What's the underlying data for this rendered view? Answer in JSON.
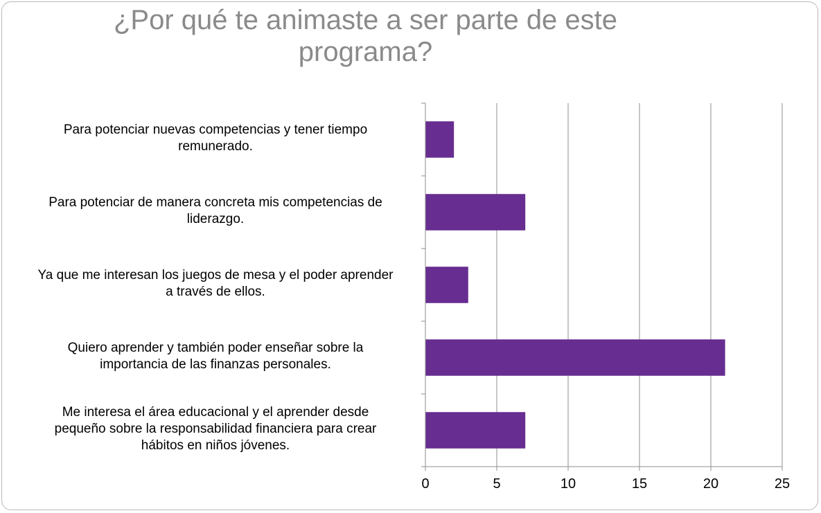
{
  "chart_data": {
    "type": "bar",
    "orientation": "horizontal",
    "title_lines": [
      "¿Por qué te animaste a ser parte de este",
      "programa?"
    ],
    "categories": [
      [
        "Para potenciar nuevas competencias y tener tiempo",
        "remunerado."
      ],
      [
        "Para potenciar de manera concreta mis competencias de",
        "liderazgo."
      ],
      [
        "Ya que me interesan los juegos de mesa y el poder aprender",
        "a través de ellos."
      ],
      [
        "Quiero aprender  y también poder enseñar sobre la",
        "importancia de las finanzas personales."
      ],
      [
        "Me interesa el área educacional y el aprender desde",
        "pequeño sobre la responsabilidad financiera para crear",
        "hábitos en niños jóvenes."
      ]
    ],
    "values": [
      2,
      7,
      3,
      21,
      7
    ],
    "xlim": [
      0,
      25
    ],
    "xticks": [
      "0",
      "5",
      "10",
      "15",
      "20",
      "25"
    ],
    "grid": true,
    "legend": "none",
    "bar_color": "#672d91"
  }
}
